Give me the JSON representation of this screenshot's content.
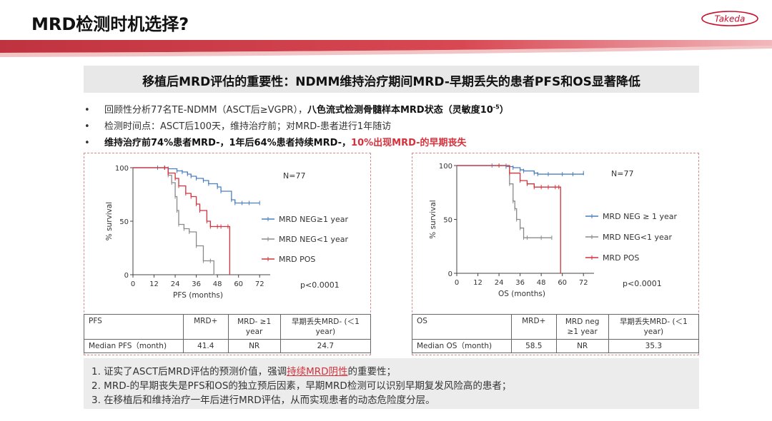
{
  "slide": {
    "title": "MRD检测时机选择?",
    "logo_text": "Takeda",
    "subtitle": "移植后MRD评估的重要性：NDMM维持治疗期间MRD-早期丢失的患者PFS和OS显著降低"
  },
  "bullets": {
    "b1_a": "回顾性分析77名TE-NDMM（ASCT后≥VGPR），",
    "b1_b": "八色流式检测骨髓样本MRD状态（灵敏度10",
    "b1_sup": "-5",
    "b1_c": "）",
    "b2": "检测时间点：ASCT后100天，维持治疗前；对MRD-患者进行1年随访",
    "b3_a": "维持治疗前74%患者MRD-，1年后64%患者持续MRD-，",
    "b3_b": "10%出现MRD-的早期丧失"
  },
  "chart_data": [
    {
      "type": "line",
      "name": "PFS",
      "xlabel": "PFS (months)",
      "ylabel": "% survival",
      "xlim": [
        0,
        78
      ],
      "ylim": [
        0,
        100
      ],
      "xticks": [
        0,
        12,
        24,
        36,
        48,
        60,
        72
      ],
      "yticks": [
        0,
        50,
        100
      ],
      "n_label": "N=77",
      "p_label": "p<0.0001",
      "legend_position": "right",
      "series": [
        {
          "name": "MRD NEG≥1 year",
          "color": "#4a7fc1",
          "x": [
            0,
            14,
            18,
            20,
            25,
            28,
            31,
            33,
            36,
            40,
            43,
            48,
            50,
            56,
            58,
            62,
            66,
            72
          ],
          "y": [
            100,
            100,
            100,
            99,
            97,
            96,
            94,
            92,
            90,
            88,
            85,
            82,
            78,
            70,
            67,
            67,
            67,
            67
          ]
        },
        {
          "name": "MRD NEG<1 year",
          "color": "#8a8a8a",
          "x": [
            0,
            18,
            20,
            22,
            24,
            25,
            26,
            29,
            32,
            36,
            40,
            44,
            46,
            47
          ],
          "y": [
            100,
            100,
            93,
            86,
            73,
            60,
            47,
            43,
            40,
            27,
            13,
            13,
            0,
            0
          ]
        },
        {
          "name": "MRD POS",
          "color": "#d4323c",
          "x": [
            0,
            18,
            20,
            24,
            26,
            30,
            33,
            36,
            38,
            42,
            44,
            48,
            50,
            54,
            55
          ],
          "y": [
            100,
            100,
            95,
            90,
            83,
            76,
            73,
            66,
            60,
            50,
            45,
            45,
            45,
            45,
            0
          ]
        }
      ]
    },
    {
      "type": "line",
      "name": "OS",
      "xlabel": "OS (months)",
      "ylabel": "% survival",
      "xlim": [
        0,
        78
      ],
      "ylim": [
        0,
        100
      ],
      "xticks": [
        0,
        12,
        24,
        36,
        48,
        60,
        72
      ],
      "yticks": [
        0,
        50,
        100
      ],
      "n_label": "N=77",
      "p_label": "p<0.0001",
      "legend_position": "right",
      "series": [
        {
          "name": "MRD NEG ≥ 1 year",
          "color": "#4a7fc1",
          "x": [
            0,
            20,
            28,
            32,
            36,
            38,
            44,
            46,
            52,
            60,
            66,
            72
          ],
          "y": [
            100,
            100,
            99,
            98,
            96,
            95,
            93,
            92,
            92,
            92,
            92,
            93
          ]
        },
        {
          "name": "MRD NEG<1 year",
          "color": "#8a8a8a",
          "x": [
            0,
            28,
            30,
            32,
            33,
            34,
            36,
            38,
            40,
            48,
            54
          ],
          "y": [
            100,
            100,
            83,
            67,
            60,
            50,
            42,
            33,
            33,
            33,
            33
          ]
        },
        {
          "name": "MRD POS",
          "color": "#d4323c",
          "x": [
            0,
            24,
            30,
            36,
            40,
            44,
            48,
            52,
            56,
            58,
            59
          ],
          "y": [
            100,
            100,
            93,
            86,
            83,
            80,
            80,
            80,
            80,
            80,
            0
          ]
        }
      ]
    }
  ],
  "pfs_table": {
    "headers": [
      "PFS",
      "MRD+",
      "MRD- ≥1 year",
      "早期丢失MRD-   (＜1 year)"
    ],
    "row": [
      "Median PFS（month)",
      "41.4",
      "NR",
      "24.7"
    ]
  },
  "os_table": {
    "headers": [
      "OS",
      "MRD+",
      "MRD neg ≥1 year",
      "早期丢失MRD-    (＜1 year)"
    ],
    "row": [
      "Median OS（month)",
      "58.5",
      "NR",
      "35.3"
    ]
  },
  "summary": {
    "s1_a": "1. 证实了ASCT后MRD评估的预测价值，强调",
    "s1_b": "持续MRD阴性",
    "s1_c": "的重要性；",
    "s2": "2. MRD-的早期丧失是PFS和OS的独立预后因素，早期MRD检测可以识别早期复发风险高的患者；",
    "s3": "3. 在移植后和维持治疗一年后进行MRD评估，从而实现患者的动态危险度分层。"
  }
}
